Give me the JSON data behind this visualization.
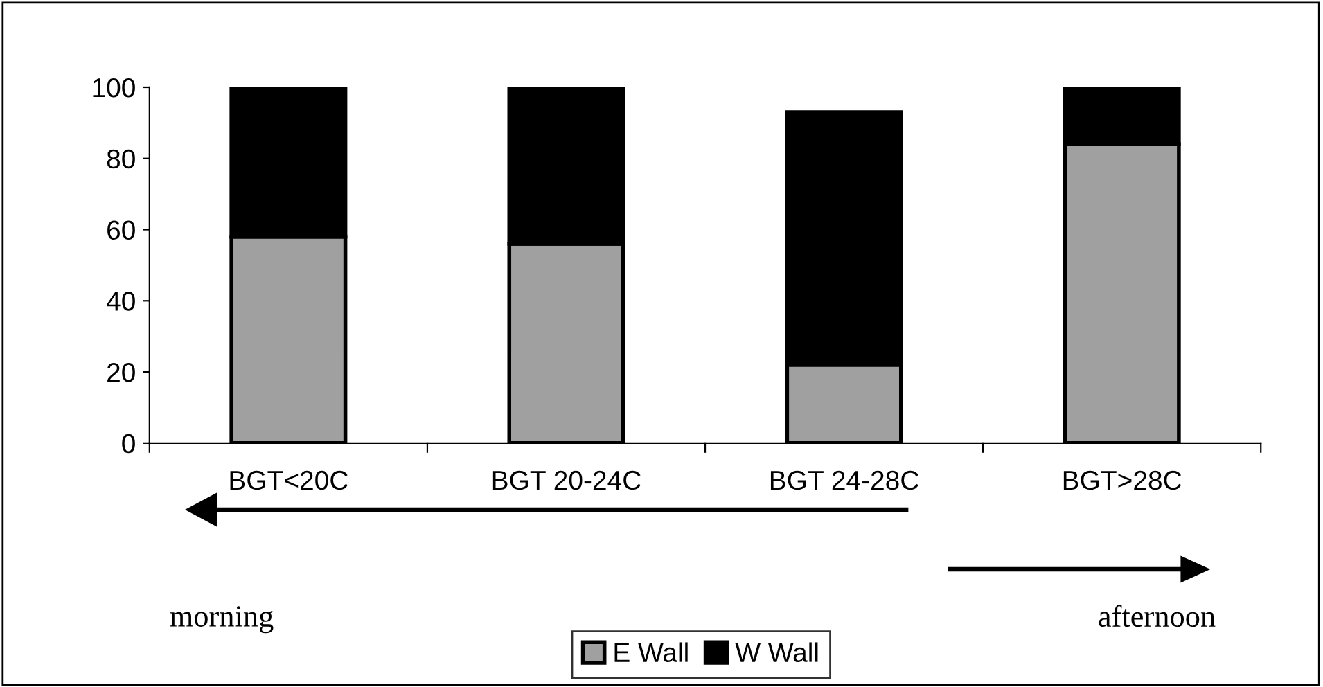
{
  "chart_data": {
    "type": "bar",
    "stacked": true,
    "categories": [
      "BGT<20C",
      "BGT 20-24C",
      "BGT 24-28C",
      "BGT>28C"
    ],
    "series": [
      {
        "name": "E Wall",
        "color": "#a0a0a0",
        "values": [
          58,
          56,
          22,
          84
        ]
      },
      {
        "name": "W Wall",
        "color": "#000000",
        "values": [
          42,
          44,
          71,
          16
        ]
      }
    ],
    "ylim": [
      0,
      100
    ],
    "yticks": [
      0,
      20,
      40,
      60,
      80,
      100
    ],
    "grid": false,
    "legend": "bottom",
    "annotations": [
      "morning",
      "afternoon"
    ]
  }
}
